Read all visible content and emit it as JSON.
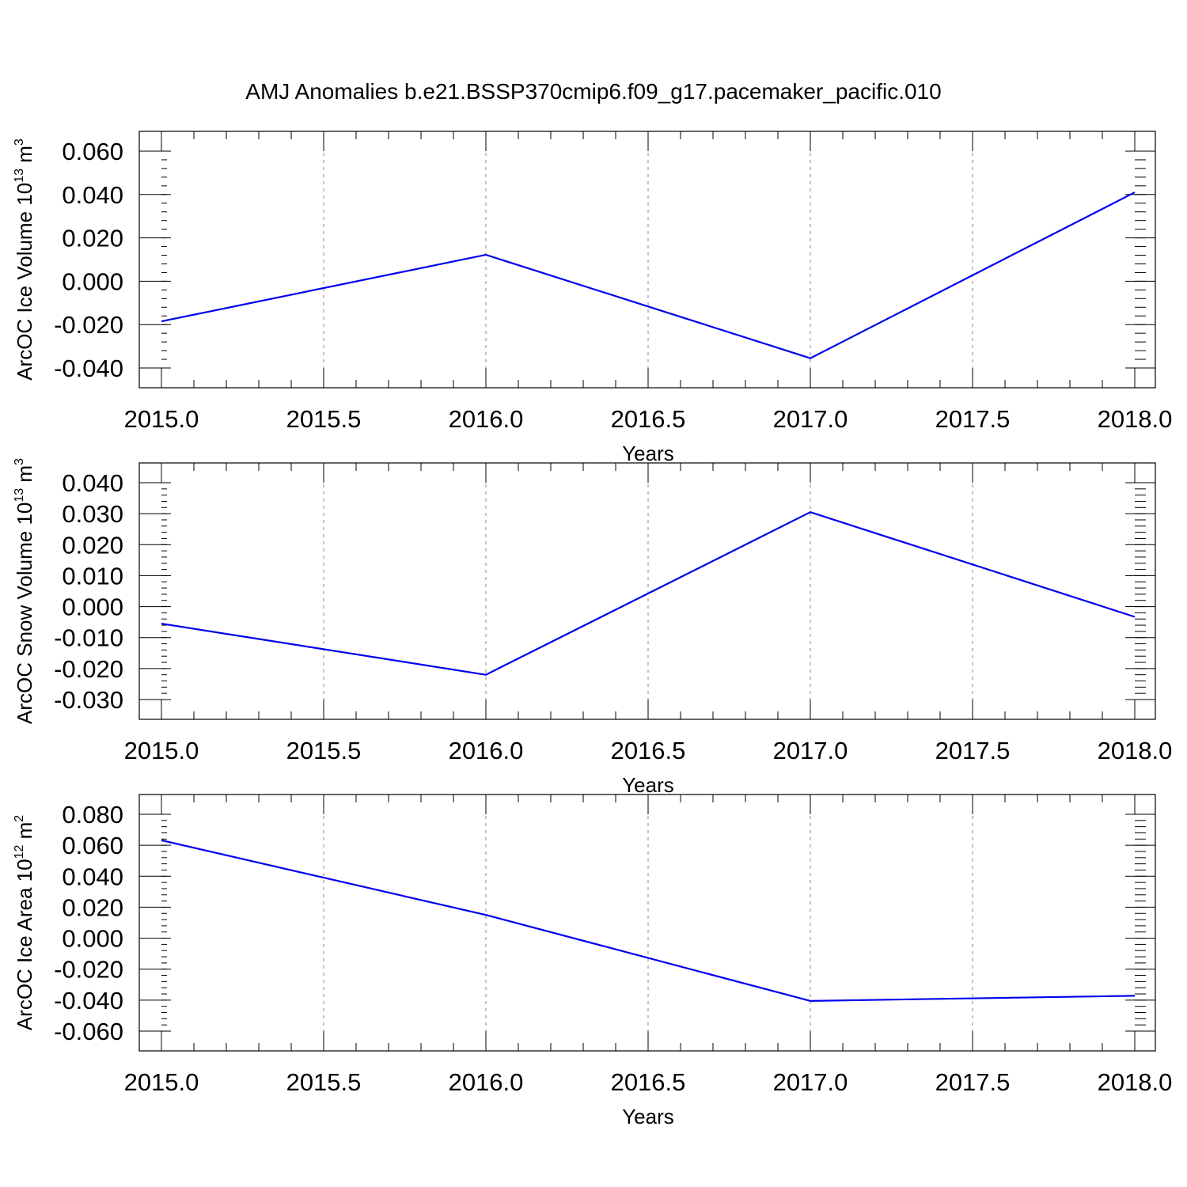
{
  "figure": {
    "title": "AMJ Anomalies b.e21.BSSP370cmip6.f09_g17.pacemaker_pacific.010",
    "line_color": "#0000ee"
  },
  "chart_data": [
    {
      "type": "line",
      "title": "",
      "xlabel": "Years",
      "ylabel": {
        "main": "ArcOC Ice Volume 10",
        "exp": "13",
        "unit": " m",
        "unit_exp": "3"
      },
      "x": [
        2015.0,
        2016.0,
        2017.0,
        2018.0
      ],
      "series": [
        {
          "values": [
            -0.0185,
            0.0122,
            -0.0355,
            0.041
          ]
        }
      ],
      "xlim": [
        2015.0,
        2018.0
      ],
      "ylim": [
        -0.04,
        0.06
      ],
      "xticks": [
        "2015.0",
        "2015.5",
        "2016.0",
        "2016.5",
        "2017.0",
        "2017.5",
        "2018.0"
      ],
      "yticks": [
        "-0.040",
        "-0.020",
        "0.000",
        "0.020",
        "0.040",
        "0.060"
      ],
      "grid": "vertical dashed"
    },
    {
      "type": "line",
      "title": "",
      "xlabel": "Years",
      "ylabel": {
        "main": "ArcOC Snow Volume 10",
        "exp": "13",
        "unit": " m",
        "unit_exp": "3"
      },
      "x": [
        2015.0,
        2016.0,
        2017.0,
        2018.0
      ],
      "series": [
        {
          "values": [
            -0.0055,
            -0.022,
            0.0305,
            -0.0033
          ]
        }
      ],
      "xlim": [
        2015.0,
        2018.0
      ],
      "ylim": [
        -0.03,
        0.04
      ],
      "xticks": [
        "2015.0",
        "2015.5",
        "2016.0",
        "2016.5",
        "2017.0",
        "2017.5",
        "2018.0"
      ],
      "yticks": [
        "-0.030",
        "-0.020",
        "-0.010",
        "0.000",
        "0.010",
        "0.020",
        "0.030",
        "0.040"
      ],
      "grid": "vertical dashed"
    },
    {
      "type": "line",
      "title": "",
      "xlabel": "Years",
      "ylabel": {
        "main": "ArcOC Ice Area 10",
        "exp": "12",
        "unit": " m",
        "unit_exp": "2"
      },
      "x": [
        2015.0,
        2016.0,
        2017.0,
        2018.0
      ],
      "series": [
        {
          "values": [
            0.0632,
            0.015,
            -0.0405,
            -0.0372
          ]
        }
      ],
      "xlim": [
        2015.0,
        2018.0
      ],
      "ylim": [
        -0.06,
        0.08
      ],
      "xticks": [
        "2015.0",
        "2015.5",
        "2016.0",
        "2016.5",
        "2017.0",
        "2017.5",
        "2018.0"
      ],
      "yticks": [
        "-0.060",
        "-0.040",
        "-0.020",
        "0.000",
        "0.020",
        "0.040",
        "0.060",
        "0.080"
      ],
      "grid": "vertical dashed"
    }
  ]
}
